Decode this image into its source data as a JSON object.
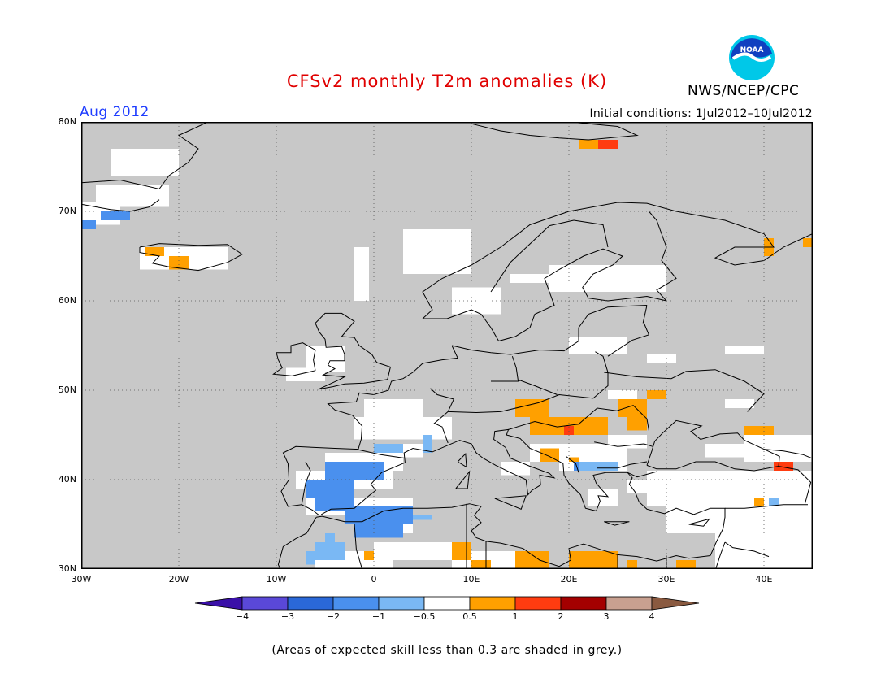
{
  "title": "CFSv2 monthly T2m anomalies (K)",
  "agency": "NWS/NCEP/CPC",
  "logo_text": "NOAA",
  "month": "Aug 2012",
  "initial_conditions": "Initial conditions: 1Jul2012–10Jul2012",
  "lat_labels": [
    "80N",
    "70N",
    "60N",
    "50N",
    "40N",
    "30N"
  ],
  "lon_labels": [
    "30W",
    "20W",
    "10W",
    "0",
    "10E",
    "20E",
    "30E",
    "40E"
  ],
  "colorbar": {
    "labels": [
      "−4",
      "−3",
      "−2",
      "−1",
      "−0.5",
      "0.5",
      "1",
      "2",
      "3",
      "4"
    ],
    "colors": [
      "#3a10a8",
      "#5a48d8",
      "#2a68d8",
      "#4a90ee",
      "#7ab8f4",
      "#ffffff",
      "#ffa000",
      "#ff3c10",
      "#a40000",
      "#c8a090",
      "#8a5a40"
    ]
  },
  "note": "(Areas of expected skill less than 0.3 are shaded in grey.)",
  "colors": {
    "grey": "#c8c8c8",
    "white": "#ffffff",
    "orange": "#ffa000",
    "red": "#ff3c10",
    "blue": "#4a90ee",
    "lightblue": "#7ab8f4"
  }
}
